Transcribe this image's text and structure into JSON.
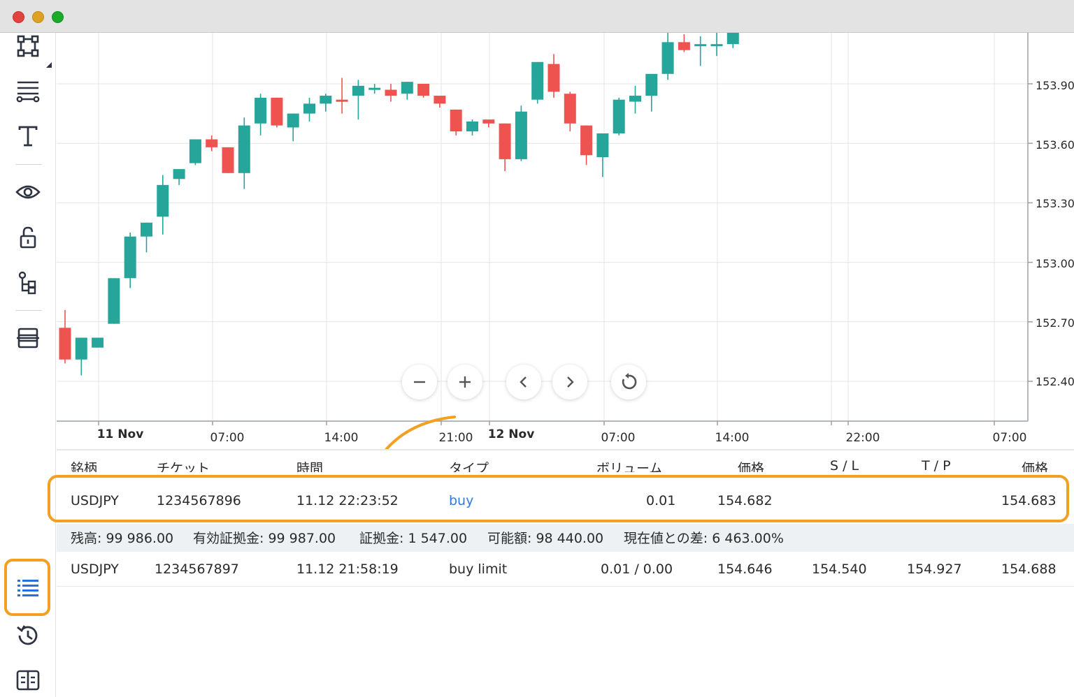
{
  "window": {
    "traffic_lights": [
      {
        "name": "close",
        "color": "#e0443e"
      },
      {
        "name": "minimize",
        "color": "#dea123"
      },
      {
        "name": "maximize",
        "color": "#1aab29"
      }
    ]
  },
  "toolbar": {
    "tools": [
      "shape-icon",
      "lines-icon",
      "text-icon",
      "eye-icon",
      "lock-icon",
      "object-tree-icon",
      "layers-icon"
    ],
    "bottom_tools": [
      "positions-list-icon",
      "history-icon",
      "journal-icon"
    ]
  },
  "chart": {
    "y_ticks": [
      "153.90",
      "153.60",
      "153.30",
      "153.00",
      "152.70",
      "152.40"
    ],
    "x_ticks": [
      "11 Nov",
      "07:00",
      "14:00",
      "21:00",
      "12 Nov",
      "07:00",
      "14:00",
      "22:00",
      "07:00"
    ],
    "colors": {
      "up": "#26a69a",
      "down": "#ef5350",
      "arrow": "#f29f22",
      "highlight": "#f29f22",
      "buy_link": "#2f7be5"
    },
    "controls": [
      "zoom-out-icon",
      "zoom-in-icon",
      "scroll-left-icon",
      "scroll-right-icon",
      "reset-icon"
    ]
  },
  "chart_data": {
    "type": "candlestick",
    "y_ticks": [
      152.4,
      152.7,
      153.0,
      153.3,
      153.6,
      153.9
    ],
    "candles": [
      {
        "o": 152.67,
        "h": 152.76,
        "l": 152.49,
        "c": 152.51
      },
      {
        "o": 152.51,
        "h": 152.62,
        "l": 152.43,
        "c": 152.62
      },
      {
        "o": 152.57,
        "h": 152.62,
        "l": 152.57,
        "c": 152.62
      },
      {
        "o": 152.69,
        "h": 152.92,
        "l": 152.69,
        "c": 152.92
      },
      {
        "o": 152.92,
        "h": 153.15,
        "l": 152.87,
        "c": 153.13
      },
      {
        "o": 153.13,
        "h": 153.2,
        "l": 153.05,
        "c": 153.2
      },
      {
        "o": 153.23,
        "h": 153.44,
        "l": 153.14,
        "c": 153.39
      },
      {
        "o": 153.42,
        "h": 153.47,
        "l": 153.39,
        "c": 153.47
      },
      {
        "o": 153.5,
        "h": 153.62,
        "l": 153.49,
        "c": 153.62
      },
      {
        "o": 153.62,
        "h": 153.64,
        "l": 153.56,
        "c": 153.58
      },
      {
        "o": 153.58,
        "h": 153.58,
        "l": 153.45,
        "c": 153.45
      },
      {
        "o": 153.45,
        "h": 153.73,
        "l": 153.37,
        "c": 153.69
      },
      {
        "o": 153.7,
        "h": 153.85,
        "l": 153.64,
        "c": 153.83
      },
      {
        "o": 153.83,
        "h": 153.83,
        "l": 153.68,
        "c": 153.69
      },
      {
        "o": 153.68,
        "h": 153.75,
        "l": 153.61,
        "c": 153.75
      },
      {
        "o": 153.75,
        "h": 153.83,
        "l": 153.71,
        "c": 153.8
      },
      {
        "o": 153.8,
        "h": 153.85,
        "l": 153.76,
        "c": 153.84
      },
      {
        "o": 153.82,
        "h": 153.93,
        "l": 153.75,
        "c": 153.81
      },
      {
        "o": 153.84,
        "h": 153.92,
        "l": 153.72,
        "c": 153.89
      },
      {
        "o": 153.88,
        "h": 153.9,
        "l": 153.85,
        "c": 153.88
      },
      {
        "o": 153.87,
        "h": 153.9,
        "l": 153.81,
        "c": 153.84
      },
      {
        "o": 153.85,
        "h": 153.91,
        "l": 153.82,
        "c": 153.91
      },
      {
        "o": 153.9,
        "h": 153.9,
        "l": 153.83,
        "c": 153.84
      },
      {
        "o": 153.84,
        "h": 153.84,
        "l": 153.78,
        "c": 153.8
      },
      {
        "o": 153.77,
        "h": 153.77,
        "l": 153.64,
        "c": 153.66
      },
      {
        "o": 153.66,
        "h": 153.72,
        "l": 153.64,
        "c": 153.71
      },
      {
        "o": 153.72,
        "h": 153.72,
        "l": 153.68,
        "c": 153.7
      },
      {
        "o": 153.7,
        "h": 153.7,
        "l": 153.46,
        "c": 153.52
      },
      {
        "o": 153.52,
        "h": 153.79,
        "l": 153.51,
        "c": 153.76
      },
      {
        "o": 153.82,
        "h": 154.0,
        "l": 153.8,
        "c": 154.01
      },
      {
        "o": 154.0,
        "h": 154.05,
        "l": 153.83,
        "c": 153.86
      },
      {
        "o": 153.85,
        "h": 153.86,
        "l": 153.66,
        "c": 153.7
      },
      {
        "o": 153.69,
        "h": 153.69,
        "l": 153.49,
        "c": 153.54
      },
      {
        "o": 153.53,
        "h": 153.65,
        "l": 153.43,
        "c": 153.65
      },
      {
        "o": 153.65,
        "h": 153.83,
        "l": 153.64,
        "c": 153.82
      },
      {
        "o": 153.81,
        "h": 153.89,
        "l": 153.75,
        "c": 153.84
      },
      {
        "o": 153.84,
        "h": 153.94,
        "l": 153.76,
        "c": 153.95
      },
      {
        "o": 153.95,
        "h": 154.16,
        "l": 153.92,
        "c": 154.11
      },
      {
        "o": 154.11,
        "h": 154.15,
        "l": 154.06,
        "c": 154.07
      },
      {
        "o": 154.09,
        "h": 154.14,
        "l": 153.99,
        "c": 154.1
      },
      {
        "o": 154.1,
        "h": 154.17,
        "l": 154.04,
        "c": 154.1
      },
      {
        "o": 154.1,
        "h": 154.18,
        "l": 154.08,
        "c": 154.18
      }
    ]
  },
  "table": {
    "headers": [
      "銘柄",
      "チケット",
      "時間",
      "タイプ",
      "ボリューム",
      "価格",
      "S / L",
      "T / P",
      "価格"
    ],
    "positions": [
      {
        "symbol": "USDJPY",
        "ticket": "1234567896",
        "time": "11.12 22:23:52",
        "type": "buy",
        "volume": "0.01",
        "price": "154.682",
        "sl": "",
        "tp": "",
        "current": "154.683"
      }
    ],
    "summary": {
      "balance": "残高: 99 986.00",
      "equity": "有効証拠金: 99 987.00",
      "margin": "証拠金: 1 547.00",
      "free": "可能額: 98 440.00",
      "level": "現在値との差: 6 463.00%"
    },
    "orders": [
      {
        "symbol": "USDJPY",
        "ticket": "1234567897",
        "time": "11.12 21:58:19",
        "type": "buy limit",
        "volume": "0.01 / 0.00",
        "price": "154.646",
        "sl": "154.540",
        "tp": "154.927",
        "current": "154.688"
      }
    ]
  }
}
